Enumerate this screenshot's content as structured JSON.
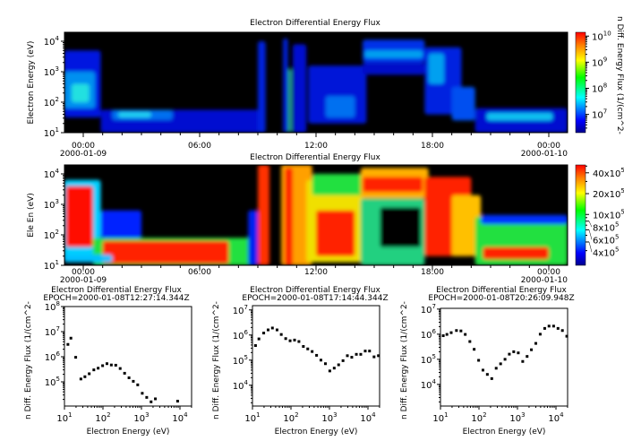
{
  "chart_data": [
    {
      "type": "heatmap",
      "title": "Electron Differential Energy Flux",
      "ylabel": "Electron Energy (eV)",
      "y_scale": "log",
      "ylim": [
        10,
        20000
      ],
      "yticks": [
        1,
        2,
        3,
        4
      ],
      "xticks": [
        "00:00",
        "06:00",
        "12:00",
        "18:00",
        "00:00"
      ],
      "xdates": [
        "2000-01-09",
        "2000-01-10"
      ],
      "xlim_hours": [
        -0.97,
        24.97
      ],
      "colorbar": {
        "label": "n Diff. Energy Flux (1/(cm^2-",
        "scale": "log",
        "range": [
          2000000.0,
          14000000000.0
        ],
        "tick_exponents": [
          10,
          9,
          8,
          7
        ]
      },
      "colors": {
        "background": "#000000",
        "low": "#0000a0",
        "high": "#ff0000"
      }
    },
    {
      "type": "heatmap",
      "title": "Electron Differential Energy Flux",
      "ylabel": "Ele En (eV)",
      "y_scale": "log",
      "ylim": [
        10,
        20000
      ],
      "yticks": [
        1,
        2,
        3,
        4
      ],
      "xticks": [
        "00:00",
        "06:00",
        "12:00",
        "18:00",
        "00:00"
      ],
      "xdates": [
        "2000-01-09",
        "2000-01-10"
      ],
      "colorbar": {
        "scale": "log",
        "range": [
          184000.0,
          5200000.0
        ],
        "tick_labels": [
          [
            "40x10",
            "5"
          ],
          [
            "20x10",
            "5"
          ],
          [
            "10x10",
            "5"
          ],
          [
            "8x10",
            "5"
          ],
          [
            "6x10",
            "5"
          ],
          [
            "4x10",
            "5"
          ]
        ],
        "tick_values": [
          40,
          20,
          10,
          8,
          6,
          4
        ]
      }
    },
    {
      "type": "scatter",
      "title": "Electron Differential Energy Flux",
      "subtitle": "EPOCH=2000-01-08T12:27:14.344Z",
      "xlabel": "Electron Energy (eV)",
      "ylabel": "n Diff. Energy Flux (1/(cm^2-",
      "x_scale": "log",
      "y_scale": "log",
      "xlim": [
        10,
        20000
      ],
      "ylim": [
        11000,
        100000000.0
      ],
      "xticks": [
        1,
        2,
        3,
        4
      ],
      "yticks": [
        5,
        6,
        7,
        8
      ],
      "x": [
        12.3,
        14.7,
        19.6,
        26.7,
        34,
        44,
        58,
        75,
        98,
        127,
        165,
        215,
        280,
        365,
        475,
        615,
        800,
        1050,
        1370,
        1780,
        2300,
        8700
      ],
      "y": [
        3100000.0,
        5500000.0,
        950000.0,
        130000.0,
        160000.0,
        210000.0,
        300000.0,
        350000.0,
        440000.0,
        530000.0,
        470000.0,
        460000.0,
        340000.0,
        220000.0,
        145000.0,
        105000.0,
        76000.0,
        35000.0,
        24000.0,
        16000.0,
        21000.0,
        17000.0
      ]
    },
    {
      "type": "scatter",
      "title": "Electron Differential Energy Flux",
      "subtitle": "EPOCH=2000-01-08T17:14:44.344Z",
      "xlabel": "Electron Energy (eV)",
      "ylabel": "n Diff. Energy Flux (1/(cm^2-",
      "x_scale": "log",
      "y_scale": "log",
      "xlim": [
        10,
        20000
      ],
      "ylim": [
        1500,
        15000000.0
      ],
      "xticks": [
        1,
        2,
        3,
        4
      ],
      "yticks": [
        4,
        5,
        6,
        7
      ],
      "x": [
        12,
        14.7,
        19.6,
        25.5,
        33,
        43.5,
        56,
        73,
        95,
        124,
        161,
        210,
        273,
        355,
        463,
        600,
        785,
        1020,
        1330,
        1730,
        2250,
        2920,
        3800,
        5000,
        6500,
        8500,
        11000,
        14400,
        18700
      ],
      "y": [
        380000.0,
        700000.0,
        1200000.0,
        1600000.0,
        1900000.0,
        1600000.0,
        1050000.0,
        720000.0,
        590000.0,
        630000.0,
        550000.0,
        350000.0,
        280000.0,
        220000.0,
        155000.0,
        100000.0,
        72000.0,
        37000.0,
        48000.0,
        65000.0,
        95000.0,
        150000.0,
        130000.0,
        170000.0,
        170000.0,
        230000.0,
        230000.0,
        135000.0,
        150000.0
      ]
    },
    {
      "type": "scatter",
      "title": "Electron Differential Energy Flux",
      "subtitle": "EPOCH=2000-01-08T20:26:09.948Z",
      "xlabel": "Electron Energy (eV)",
      "ylabel": "n Diff. Energy Flux (1/(cm^2-",
      "x_scale": "log",
      "y_scale": "log",
      "xlim": [
        10,
        20000
      ],
      "ylim": [
        1100,
        11000000.0
      ],
      "xticks": [
        1,
        2,
        3,
        4
      ],
      "yticks": [
        4,
        5,
        6,
        7
      ],
      "x": [
        11.8,
        14.7,
        19,
        26,
        34,
        44,
        58,
        75,
        98,
        127,
        165,
        215,
        280,
        365,
        475,
        615,
        800,
        1050,
        1370,
        1780,
        2300,
        3000,
        3900,
        5100,
        6600,
        8700,
        11300,
        14700,
        19100
      ],
      "y": [
        870000.0,
        980000.0,
        1150000.0,
        1400000.0,
        1350000.0,
        980000.0,
        510000.0,
        250000.0,
        91000.0,
        37000.0,
        25000.0,
        17000.0,
        44000.0,
        66000.0,
        100000.0,
        160000.0,
        200000.0,
        180000.0,
        82000.0,
        130000.0,
        240000.0,
        430000.0,
        1000000.0,
        1700000.0,
        2100000.0,
        2100000.0,
        1700000.0,
        1400000.0,
        830000.0
      ]
    }
  ]
}
